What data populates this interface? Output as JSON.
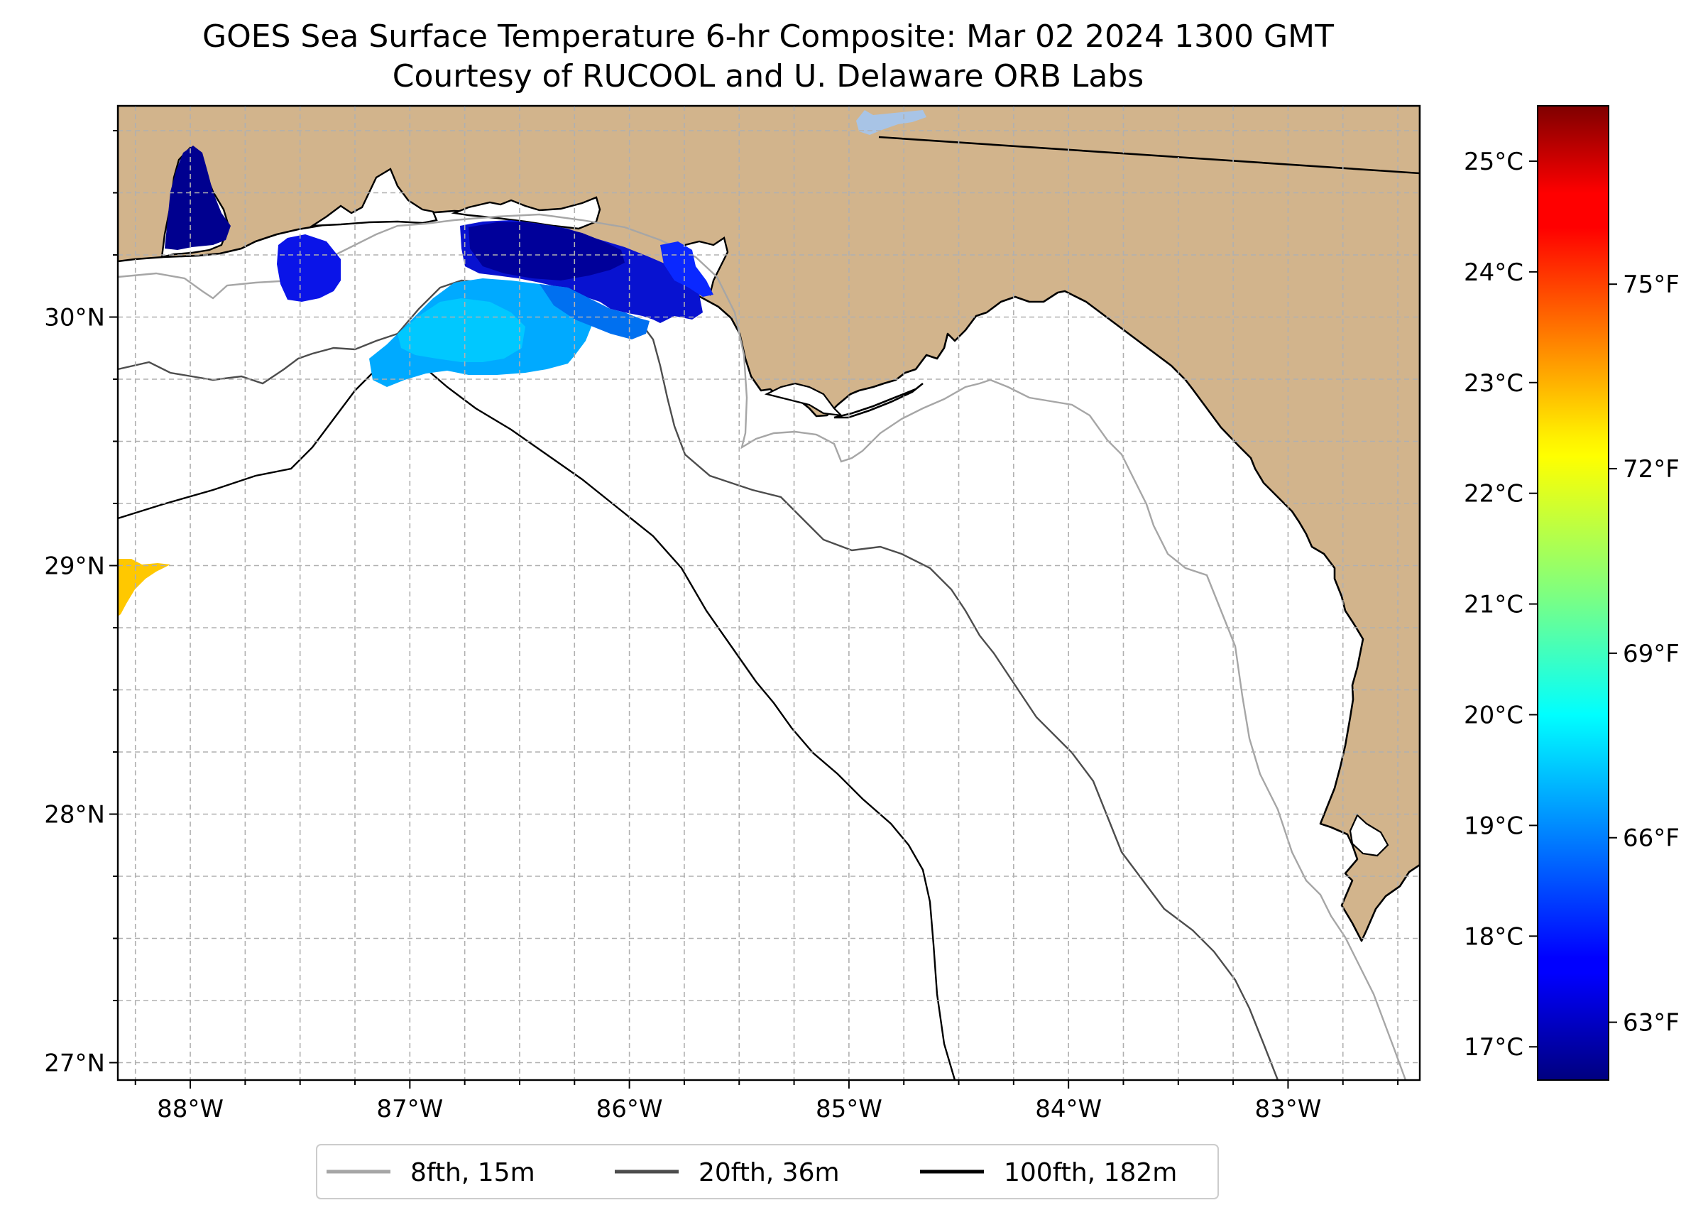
{
  "title": {
    "line1": "GOES Sea Surface Temperature 6-hr Composite: Mar 02 2024 1300 GMT",
    "line2": "Courtesy of RUCOOL and U. Delaware ORB Labs"
  },
  "map": {
    "lon_range": [
      -88.33,
      -82.4
    ],
    "lat_range": [
      26.93,
      30.85
    ],
    "lon_ticks": [
      {
        "value": -88,
        "label": "88°W"
      },
      {
        "value": -87,
        "label": "87°W"
      },
      {
        "value": -86,
        "label": "86°W"
      },
      {
        "value": -85,
        "label": "85°W"
      },
      {
        "value": -84,
        "label": "84°W"
      },
      {
        "value": -83,
        "label": "83°W"
      }
    ],
    "lat_ticks": [
      {
        "value": 30,
        "label": "30°N"
      },
      {
        "value": 29,
        "label": "29°N"
      },
      {
        "value": 28,
        "label": "28°N"
      },
      {
        "value": 27,
        "label": "27°N"
      }
    ],
    "grid_step_deg": 0.25,
    "land_color": "#d2b48c",
    "water_color": "#ffffff"
  },
  "colorbar": {
    "colormap": "jet",
    "celsius_range": [
      16.7,
      25.5
    ],
    "celsius_ticks": [
      {
        "value": 17,
        "label": "17°C"
      },
      {
        "value": 18,
        "label": "18°C"
      },
      {
        "value": 19,
        "label": "19°C"
      },
      {
        "value": 20,
        "label": "20°C"
      },
      {
        "value": 21,
        "label": "21°C"
      },
      {
        "value": 22,
        "label": "22°C"
      },
      {
        "value": 23,
        "label": "23°C"
      },
      {
        "value": 24,
        "label": "24°C"
      },
      {
        "value": 25,
        "label": "25°C"
      }
    ],
    "fahrenheit_ticks": [
      {
        "value": 63,
        "label": "63°F"
      },
      {
        "value": 66,
        "label": "66°F"
      },
      {
        "value": 69,
        "label": "69°F"
      },
      {
        "value": 72,
        "label": "72°F"
      },
      {
        "value": 75,
        "label": "75°F"
      }
    ]
  },
  "legend": {
    "placement": "bottom-center",
    "items": [
      {
        "label": "8fth, 15m",
        "color": "#a6a6a6"
      },
      {
        "label": "20fth, 36m",
        "color": "#4d4d4d"
      },
      {
        "label": "100fth, 182m",
        "color": "#000000"
      }
    ]
  }
}
